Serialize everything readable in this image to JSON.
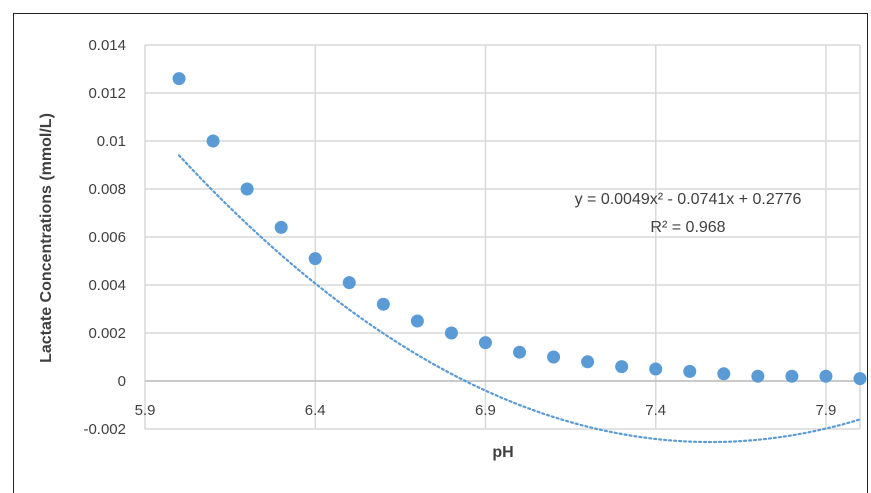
{
  "chart_data": {
    "type": "scatter",
    "title": "",
    "xlabel": "pH",
    "ylabel": "Lactate Concentrations (mmol/L)",
    "xlim": [
      5.9,
      8.0
    ],
    "ylim": [
      -0.002,
      0.014
    ],
    "xticks": [
      5.9,
      6.4,
      6.9,
      7.4,
      7.9
    ],
    "xtick_labels": [
      "5.9",
      "6.4",
      "6.9",
      "7.4",
      "7.9"
    ],
    "yticks": [
      -0.002,
      0,
      0.002,
      0.004,
      0.006,
      0.008,
      0.01,
      0.012,
      0.014
    ],
    "ytick_labels": [
      "-0.002",
      "0",
      "0.002",
      "0.004",
      "0.006",
      "0.008",
      "0.01",
      "0.012",
      "0.014"
    ],
    "grid": true,
    "legend": "none",
    "series": [
      {
        "x": [
          6.0,
          6.1,
          6.2,
          6.3,
          6.4,
          6.5,
          6.6,
          6.7,
          6.8,
          6.9,
          7.0,
          7.1,
          7.2,
          7.3,
          7.4,
          7.5,
          7.6,
          7.7,
          7.8,
          7.9,
          8.0
        ],
        "y": [
          0.0126,
          0.01,
          0.008,
          0.0064,
          0.0051,
          0.0041,
          0.0032,
          0.0025,
          0.002,
          0.0016,
          0.0012,
          0.001,
          0.0008,
          0.0006,
          0.0005,
          0.0004,
          0.0003,
          0.0002,
          0.0002,
          0.0002,
          0.0001
        ],
        "color": "#5B9BD5"
      }
    ],
    "trendline": {
      "type": "polynomial",
      "order": 2,
      "coefficients": [
        0.0049,
        -0.0741,
        0.2776
      ],
      "x_range": [
        6.0,
        8.0
      ],
      "color": "#5B9BD5",
      "style": "dotted"
    },
    "annotations": {
      "equation": "y = 0.0049x² - 0.0741x + 0.2776",
      "r_squared": "R² = 0.968"
    },
    "colors": {
      "grid": "#D9D9D9",
      "text": "#404040",
      "frame": "#222222"
    }
  }
}
